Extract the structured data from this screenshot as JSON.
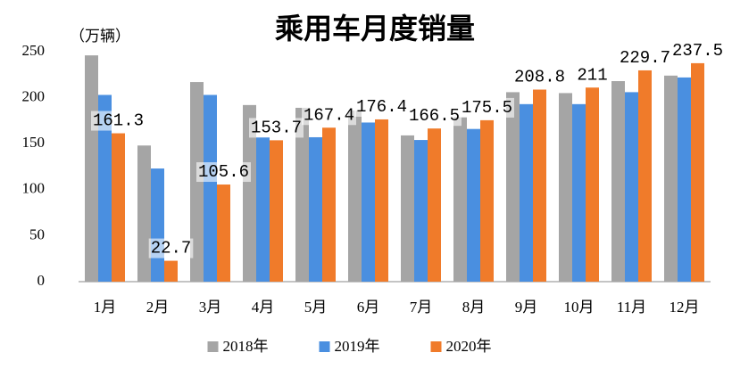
{
  "chart_data": {
    "type": "bar",
    "title": "乘用车月度销量",
    "y_label": "（万辆）",
    "categories": [
      "1月",
      "2月",
      "3月",
      "4月",
      "5月",
      "6月",
      "7月",
      "8月",
      "9月",
      "10月",
      "11月",
      "12月"
    ],
    "series": [
      {
        "name": "2018年",
        "color": "#a5a5a5",
        "values": [
          246,
          148,
          217,
          192,
          189,
          186,
          159,
          179,
          206,
          205,
          218,
          224
        ]
      },
      {
        "name": "2019年",
        "color": "#4a8fe0",
        "values": [
          203,
          123,
          203,
          157,
          157,
          173,
          154,
          166,
          193,
          193,
          206,
          222
        ]
      },
      {
        "name": "2020年",
        "color": "#f07b2a",
        "values": [
          161.3,
          22.7,
          105.6,
          153.7,
          167.4,
          176.4,
          166.5,
          175.5,
          208.8,
          211,
          229.7,
          237.5
        ]
      }
    ],
    "labeled_series": 2,
    "ylim": [
      0,
      250
    ],
    "yticks": [
      0,
      50,
      100,
      150,
      200,
      250
    ],
    "grid": false,
    "legend": "bottom"
  }
}
